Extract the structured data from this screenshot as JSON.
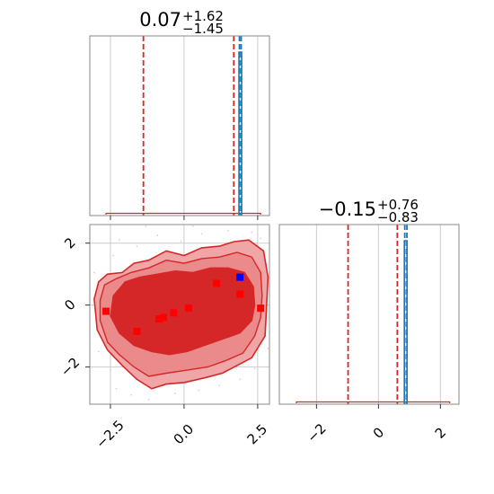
{
  "chart_data": [
    {
      "type": "line",
      "panel": "marginal-x",
      "title": {
        "main": "0.07",
        "upper": "+1.62",
        "lower": "−1.45"
      },
      "xlim": [
        -3.2,
        2.9
      ],
      "x_ticks": [
        -2.5,
        0.0,
        2.5
      ],
      "grid": true,
      "colors": {
        "frame": "#888888",
        "grid": "#cccccc",
        "posterior": "#d62728",
        "truth": "#1f77b4"
      },
      "quantile_lines": [
        -1.38,
        1.69
      ],
      "truth_lines": [
        1.88,
        1.94
      ],
      "spike_center": 1.91
    },
    {
      "type": "line",
      "panel": "marginal-y",
      "title": {
        "main": "−0.15",
        "upper": "+0.76",
        "lower": "−0.83"
      },
      "xlim": [
        -3.2,
        2.6
      ],
      "x_ticks": [
        -2,
        0,
        2
      ],
      "x_tick_labels": [
        "−2",
        "0",
        "2"
      ],
      "grid": true,
      "colors": {
        "frame": "#888888",
        "grid": "#cccccc",
        "posterior": "#d62728",
        "truth": "#1f77b4"
      },
      "quantile_lines": [
        -0.98,
        0.61
      ],
      "truth_lines": [
        0.85,
        0.92
      ],
      "spike_center": 0.88
    },
    {
      "type": "scatter",
      "panel": "joint",
      "xlim": [
        -3.2,
        2.9
      ],
      "ylim": [
        -3.2,
        2.6
      ],
      "x_ticks": [
        -2.5,
        0.0,
        2.5
      ],
      "x_tick_labels": [
        "−2.5",
        "0.0",
        "2.5"
      ],
      "y_ticks": [
        -2,
        0,
        2
      ],
      "y_tick_labels": [
        "−2",
        "0",
        "2"
      ],
      "grid": true,
      "colors": {
        "frame": "#888888",
        "grid": "#cccccc",
        "outer": "#f0a5a6",
        "mid": "#ea8a8b",
        "inner": "#d62728",
        "line": "#d62728",
        "marker": "#ff0000",
        "highlight": "#0000ff"
      },
      "contour_outer": [
        [
          -3.05,
          0.2
        ],
        [
          -2.9,
          0.75
        ],
        [
          -2.6,
          1.0
        ],
        [
          -2.1,
          1.05
        ],
        [
          -1.7,
          1.35
        ],
        [
          -1.2,
          1.45
        ],
        [
          -0.6,
          1.75
        ],
        [
          0.0,
          1.6
        ],
        [
          0.6,
          1.85
        ],
        [
          1.2,
          1.9
        ],
        [
          1.7,
          2.05
        ],
        [
          2.2,
          2.1
        ],
        [
          2.7,
          1.75
        ],
        [
          2.85,
          0.9
        ],
        [
          2.8,
          -0.1
        ],
        [
          2.75,
          -1.0
        ],
        [
          2.3,
          -1.7
        ],
        [
          1.8,
          -1.95
        ],
        [
          1.3,
          -2.2
        ],
        [
          0.7,
          -2.35
        ],
        [
          0.0,
          -2.5
        ],
        [
          -0.6,
          -2.55
        ],
        [
          -1.1,
          -2.7
        ],
        [
          -1.6,
          -2.4
        ],
        [
          -2.1,
          -1.95
        ],
        [
          -2.6,
          -1.45
        ],
        [
          -2.95,
          -0.8
        ]
      ],
      "contour_mid": [
        [
          -2.85,
          0.15
        ],
        [
          -2.7,
          0.65
        ],
        [
          -2.3,
          0.85
        ],
        [
          -1.8,
          1.05
        ],
        [
          -1.2,
          1.2
        ],
        [
          -0.6,
          1.45
        ],
        [
          0.0,
          1.35
        ],
        [
          0.6,
          1.5
        ],
        [
          1.2,
          1.55
        ],
        [
          1.8,
          1.7
        ],
        [
          2.3,
          1.55
        ],
        [
          2.6,
          1.05
        ],
        [
          2.65,
          0.3
        ],
        [
          2.6,
          -0.4
        ],
        [
          2.4,
          -1.0
        ],
        [
          2.0,
          -1.55
        ],
        [
          1.4,
          -1.8
        ],
        [
          0.8,
          -2.0
        ],
        [
          0.1,
          -2.1
        ],
        [
          -0.6,
          -2.2
        ],
        [
          -1.2,
          -2.3
        ],
        [
          -1.7,
          -2.0
        ],
        [
          -2.2,
          -1.6
        ],
        [
          -2.6,
          -1.2
        ],
        [
          -2.85,
          -0.5
        ]
      ],
      "contour_inner": [
        [
          -2.4,
          0.3
        ],
        [
          -2.0,
          0.75
        ],
        [
          -1.5,
          0.9
        ],
        [
          -0.9,
          1.0
        ],
        [
          -0.3,
          1.1
        ],
        [
          0.3,
          1.05
        ],
        [
          0.9,
          1.2
        ],
        [
          1.5,
          1.2
        ],
        [
          2.05,
          1.05
        ],
        [
          2.35,
          0.6
        ],
        [
          2.4,
          0.0
        ],
        [
          2.3,
          -0.5
        ],
        [
          1.9,
          -0.9
        ],
        [
          1.3,
          -1.1
        ],
        [
          0.7,
          -1.3
        ],
        [
          0.1,
          -1.5
        ],
        [
          -0.5,
          -1.6
        ],
        [
          -1.1,
          -1.5
        ],
        [
          -1.7,
          -1.3
        ],
        [
          -2.2,
          -0.9
        ],
        [
          -2.5,
          -0.35
        ]
      ],
      "points": [
        [
          -2.65,
          -0.2
        ],
        [
          -1.6,
          -0.85
        ],
        [
          -0.85,
          -0.45
        ],
        [
          -0.7,
          -0.4
        ],
        [
          -0.35,
          -0.25
        ],
        [
          0.15,
          -0.1
        ],
        [
          1.1,
          0.7
        ],
        [
          1.9,
          0.35
        ],
        [
          2.6,
          -0.1
        ]
      ],
      "highlight_point": [
        1.9,
        0.9
      ],
      "noise_points": [
        [
          -2.4,
          1.6
        ],
        [
          -2.2,
          2.1
        ],
        [
          -1.6,
          1.9
        ],
        [
          -0.9,
          2.25
        ],
        [
          -0.1,
          2.05
        ],
        [
          0.6,
          2.3
        ],
        [
          1.5,
          2.4
        ],
        [
          2.3,
          2.35
        ],
        [
          2.6,
          2.15
        ],
        [
          -2.9,
          -1.5
        ],
        [
          -2.5,
          -2.1
        ],
        [
          -2.3,
          -2.7
        ],
        [
          -1.8,
          -2.9
        ],
        [
          -1.2,
          -3.05
        ],
        [
          -0.3,
          -2.85
        ],
        [
          0.5,
          -2.75
        ],
        [
          1.2,
          -2.6
        ],
        [
          1.9,
          -2.4
        ],
        [
          2.4,
          -2.05
        ],
        [
          -3.05,
          1.05
        ],
        [
          2.8,
          1.3
        ],
        [
          2.85,
          -1.4
        ],
        [
          -1.3,
          2.55
        ],
        [
          0.3,
          2.55
        ]
      ]
    }
  ]
}
